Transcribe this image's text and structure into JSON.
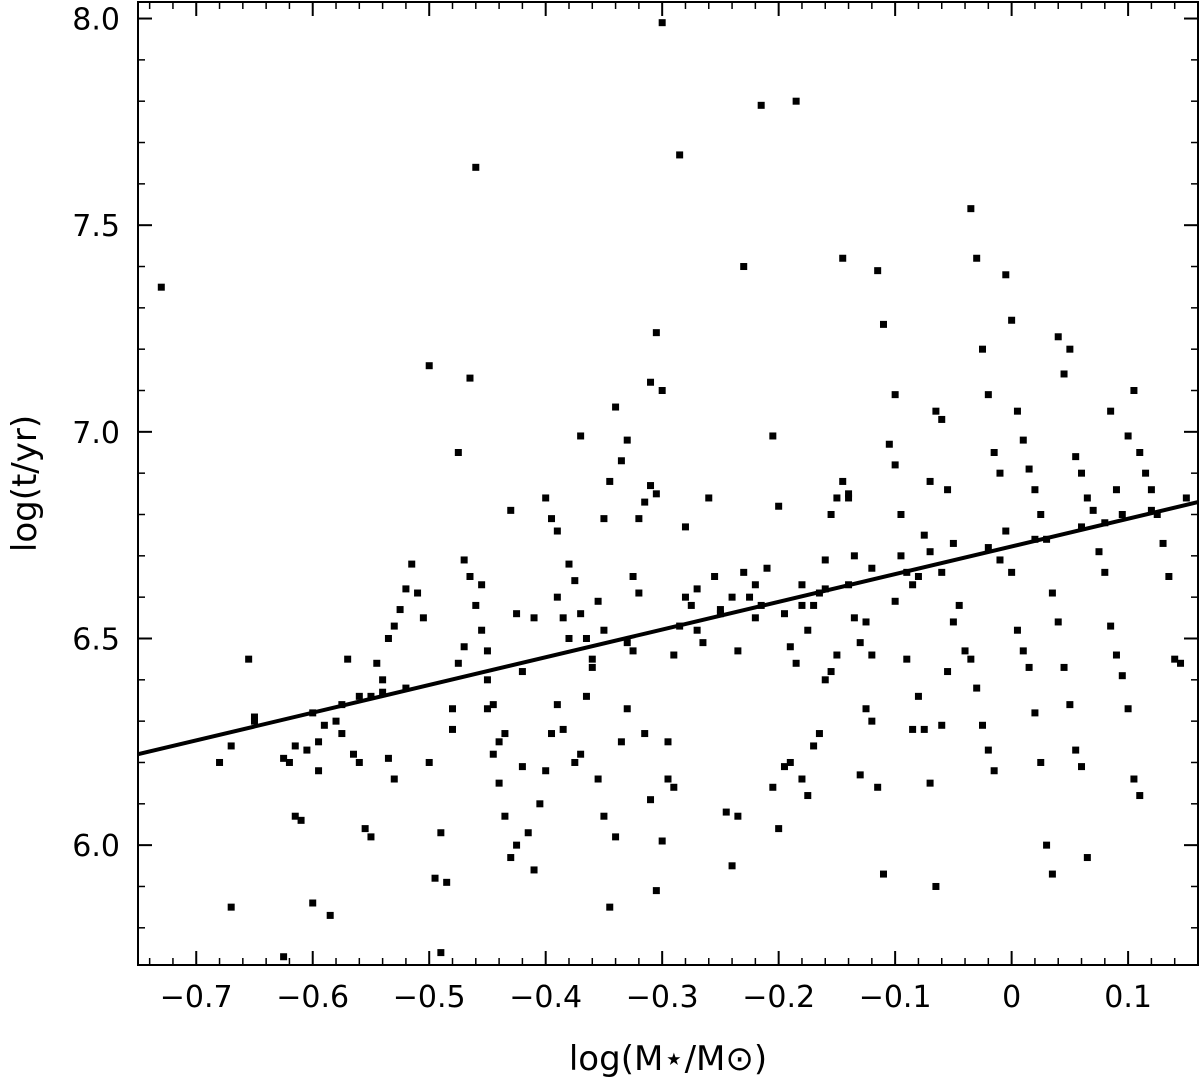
{
  "chart_data": {
    "type": "scatter",
    "title": "",
    "xlabel": "log(M⋆/M⊙)",
    "ylabel": "log(t/yr)",
    "xlim": [
      -0.75,
      0.16
    ],
    "ylim": [
      5.71,
      8.04
    ],
    "x_ticks": [
      -0.7,
      -0.6,
      -0.5,
      -0.4,
      -0.3,
      -0.2,
      -0.1,
      0,
      0.1
    ],
    "x_tick_labels": [
      "−0.7",
      "−0.6",
      "−0.5",
      "−0.4",
      "−0.3",
      "−0.2",
      "−0.1",
      "0",
      "0.1"
    ],
    "y_ticks": [
      6.0,
      6.5,
      7.0,
      7.5,
      8.0
    ],
    "y_tick_labels": [
      "6.0",
      "6.5",
      "7.0",
      "7.5",
      "8.0"
    ],
    "grid": false,
    "legend": "none",
    "points": [
      [
        -0.73,
        7.35
      ],
      [
        -0.68,
        6.2
      ],
      [
        -0.67,
        6.24
      ],
      [
        -0.67,
        5.85
      ],
      [
        -0.655,
        6.45
      ],
      [
        -0.65,
        6.31
      ],
      [
        -0.625,
        6.21
      ],
      [
        -0.62,
        6.2
      ],
      [
        -0.615,
        6.07
      ],
      [
        -0.61,
        6.06
      ],
      [
        -0.605,
        6.23
      ],
      [
        -0.6,
        5.86
      ],
      [
        -0.595,
        6.18
      ],
      [
        -0.59,
        6.29
      ],
      [
        -0.585,
        5.83
      ],
      [
        -0.58,
        6.3
      ],
      [
        -0.575,
        6.34
      ],
      [
        -0.57,
        6.45
      ],
      [
        -0.565,
        6.22
      ],
      [
        -0.56,
        6.2
      ],
      [
        -0.555,
        6.04
      ],
      [
        -0.55,
        6.02
      ],
      [
        -0.545,
        6.44
      ],
      [
        -0.54,
        6.4
      ],
      [
        -0.535,
        6.21
      ],
      [
        -0.53,
        6.16
      ],
      [
        -0.625,
        5.73
      ],
      [
        -0.615,
        6.24
      ],
      [
        -0.595,
        6.25
      ],
      [
        -0.575,
        6.27
      ],
      [
        -0.55,
        6.36
      ],
      [
        -0.54,
        6.37
      ],
      [
        -0.535,
        6.5
      ],
      [
        -0.53,
        6.53
      ],
      [
        -0.525,
        6.57
      ],
      [
        -0.52,
        6.62
      ],
      [
        -0.515,
        6.68
      ],
      [
        -0.51,
        6.61
      ],
      [
        -0.505,
        6.55
      ],
      [
        -0.5,
        6.2
      ],
      [
        -0.495,
        5.92
      ],
      [
        -0.49,
        6.03
      ],
      [
        -0.485,
        5.91
      ],
      [
        -0.48,
        6.28
      ],
      [
        -0.475,
        6.44
      ],
      [
        -0.47,
        6.69
      ],
      [
        -0.465,
        6.65
      ],
      [
        -0.46,
        6.58
      ],
      [
        -0.455,
        6.63
      ],
      [
        -0.45,
        6.33
      ],
      [
        -0.445,
        6.22
      ],
      [
        -0.44,
        6.15
      ],
      [
        -0.435,
        6.07
      ],
      [
        -0.43,
        5.97
      ],
      [
        -0.425,
        6.0
      ],
      [
        -0.5,
        7.16
      ],
      [
        -0.49,
        5.74
      ],
      [
        -0.475,
        6.95
      ],
      [
        -0.465,
        7.13
      ],
      [
        -0.46,
        7.64
      ],
      [
        -0.455,
        6.52
      ],
      [
        -0.45,
        6.47
      ],
      [
        -0.445,
        6.34
      ],
      [
        -0.44,
        6.25
      ],
      [
        -0.435,
        6.27
      ],
      [
        -0.43,
        6.81
      ],
      [
        -0.425,
        6.56
      ],
      [
        -0.42,
        6.19
      ],
      [
        -0.415,
        6.03
      ],
      [
        -0.41,
        5.94
      ],
      [
        -0.405,
        6.1
      ],
      [
        -0.4,
        6.18
      ],
      [
        -0.395,
        6.27
      ],
      [
        -0.39,
        6.34
      ],
      [
        -0.385,
        6.28
      ],
      [
        -0.38,
        6.68
      ],
      [
        -0.375,
        6.64
      ],
      [
        -0.37,
        6.99
      ],
      [
        -0.365,
        6.5
      ],
      [
        -0.36,
        6.45
      ],
      [
        -0.355,
        6.16
      ],
      [
        -0.35,
        6.07
      ],
      [
        -0.345,
        5.85
      ],
      [
        -0.34,
        6.02
      ],
      [
        -0.335,
        6.25
      ],
      [
        -0.33,
        6.33
      ],
      [
        -0.325,
        6.47
      ],
      [
        -0.32,
        6.79
      ],
      [
        -0.315,
        6.83
      ],
      [
        -0.31,
        6.87
      ],
      [
        -0.305,
        6.85
      ],
      [
        -0.4,
        6.84
      ],
      [
        -0.395,
        6.79
      ],
      [
        -0.39,
        6.76
      ],
      [
        -0.385,
        6.55
      ],
      [
        -0.38,
        6.5
      ],
      [
        -0.375,
        6.2
      ],
      [
        -0.37,
        6.22
      ],
      [
        -0.365,
        6.36
      ],
      [
        -0.36,
        6.43
      ],
      [
        -0.355,
        6.59
      ],
      [
        -0.35,
        6.79
      ],
      [
        -0.345,
        6.88
      ],
      [
        -0.34,
        7.06
      ],
      [
        -0.335,
        6.93
      ],
      [
        -0.33,
        6.98
      ],
      [
        -0.325,
        6.65
      ],
      [
        -0.32,
        6.61
      ],
      [
        -0.315,
        6.27
      ],
      [
        -0.31,
        6.11
      ],
      [
        -0.305,
        5.89
      ],
      [
        -0.3,
        6.01
      ],
      [
        -0.295,
        6.25
      ],
      [
        -0.29,
        6.46
      ],
      [
        -0.285,
        6.53
      ],
      [
        -0.28,
        6.6
      ],
      [
        -0.31,
        7.12
      ],
      [
        -0.305,
        7.24
      ],
      [
        -0.3,
        7.1
      ],
      [
        -0.3,
        7.99
      ],
      [
        -0.295,
        6.16
      ],
      [
        -0.29,
        6.14
      ],
      [
        -0.285,
        7.67
      ],
      [
        -0.28,
        6.77
      ],
      [
        -0.275,
        6.58
      ],
      [
        -0.27,
        6.52
      ],
      [
        -0.265,
        6.49
      ],
      [
        -0.26,
        6.84
      ],
      [
        -0.255,
        6.65
      ],
      [
        -0.25,
        6.57
      ],
      [
        -0.245,
        6.08
      ],
      [
        -0.24,
        5.95
      ],
      [
        -0.235,
        6.47
      ],
      [
        -0.23,
        6.66
      ],
      [
        -0.225,
        6.6
      ],
      [
        -0.22,
        6.63
      ],
      [
        -0.215,
        6.58
      ],
      [
        -0.21,
        6.67
      ],
      [
        -0.205,
        6.14
      ],
      [
        -0.2,
        6.04
      ],
      [
        -0.195,
        6.19
      ],
      [
        -0.19,
        6.2
      ],
      [
        -0.235,
        6.07
      ],
      [
        -0.23,
        7.4
      ],
      [
        -0.215,
        7.79
      ],
      [
        -0.205,
        6.99
      ],
      [
        -0.2,
        6.82
      ],
      [
        -0.195,
        6.56
      ],
      [
        -0.19,
        6.48
      ],
      [
        -0.185,
        6.44
      ],
      [
        -0.18,
        6.16
      ],
      [
        -0.175,
        6.12
      ],
      [
        -0.17,
        6.58
      ],
      [
        -0.165,
        6.61
      ],
      [
        -0.16,
        6.62
      ],
      [
        -0.155,
        6.8
      ],
      [
        -0.15,
        6.84
      ],
      [
        -0.185,
        7.8
      ],
      [
        -0.18,
        6.63
      ],
      [
        -0.175,
        6.52
      ],
      [
        -0.17,
        6.24
      ],
      [
        -0.165,
        6.27
      ],
      [
        -0.16,
        6.4
      ],
      [
        -0.155,
        6.42
      ],
      [
        -0.15,
        6.46
      ],
      [
        -0.145,
        6.88
      ],
      [
        -0.14,
        6.85
      ],
      [
        -0.135,
        6.7
      ],
      [
        -0.13,
        6.49
      ],
      [
        -0.125,
        6.54
      ],
      [
        -0.12,
        6.3
      ],
      [
        -0.115,
        6.14
      ],
      [
        -0.11,
        5.93
      ],
      [
        -0.145,
        7.42
      ],
      [
        -0.14,
        6.84
      ],
      [
        -0.135,
        6.55
      ],
      [
        -0.13,
        6.17
      ],
      [
        -0.125,
        6.33
      ],
      [
        -0.12,
        6.46
      ],
      [
        -0.115,
        7.39
      ],
      [
        -0.11,
        7.26
      ],
      [
        -0.105,
        6.97
      ],
      [
        -0.1,
        6.92
      ],
      [
        -0.095,
        6.7
      ],
      [
        -0.09,
        6.66
      ],
      [
        -0.085,
        6.63
      ],
      [
        -0.08,
        6.36
      ],
      [
        -0.075,
        6.28
      ],
      [
        -0.07,
        6.15
      ],
      [
        -0.065,
        5.9
      ],
      [
        -0.06,
        6.29
      ],
      [
        -0.055,
        6.42
      ],
      [
        -0.05,
        6.54
      ],
      [
        -0.1,
        7.09
      ],
      [
        -0.095,
        6.8
      ],
      [
        -0.09,
        6.45
      ],
      [
        -0.085,
        6.28
      ],
      [
        -0.08,
        6.65
      ],
      [
        -0.075,
        6.75
      ],
      [
        -0.07,
        6.88
      ],
      [
        -0.065,
        7.05
      ],
      [
        -0.06,
        7.03
      ],
      [
        -0.055,
        6.86
      ],
      [
        -0.05,
        6.73
      ],
      [
        -0.045,
        6.58
      ],
      [
        -0.04,
        6.47
      ],
      [
        -0.035,
        6.45
      ],
      [
        -0.03,
        6.38
      ],
      [
        -0.025,
        6.29
      ],
      [
        -0.02,
        6.23
      ],
      [
        -0.015,
        6.18
      ],
      [
        -0.035,
        7.54
      ],
      [
        -0.03,
        7.42
      ],
      [
        -0.025,
        7.2
      ],
      [
        -0.02,
        7.09
      ],
      [
        -0.015,
        6.95
      ],
      [
        -0.01,
        6.9
      ],
      [
        -0.005,
        6.76
      ],
      [
        0.0,
        6.66
      ],
      [
        0.005,
        6.52
      ],
      [
        0.01,
        6.47
      ],
      [
        0.015,
        6.43
      ],
      [
        0.02,
        6.32
      ],
      [
        0.025,
        6.2
      ],
      [
        0.03,
        6.0
      ],
      [
        0.035,
        5.93
      ],
      [
        -0.005,
        7.38
      ],
      [
        0.0,
        7.27
      ],
      [
        0.005,
        7.05
      ],
      [
        0.01,
        6.98
      ],
      [
        0.015,
        6.91
      ],
      [
        0.02,
        6.86
      ],
      [
        0.025,
        6.8
      ],
      [
        0.03,
        6.74
      ],
      [
        0.035,
        6.61
      ],
      [
        0.04,
        6.54
      ],
      [
        0.045,
        6.43
      ],
      [
        0.05,
        6.34
      ],
      [
        0.055,
        6.23
      ],
      [
        0.06,
        6.19
      ],
      [
        0.065,
        5.97
      ],
      [
        0.04,
        7.23
      ],
      [
        0.045,
        7.14
      ],
      [
        0.05,
        7.2
      ],
      [
        0.055,
        6.94
      ],
      [
        0.06,
        6.9
      ],
      [
        0.065,
        6.84
      ],
      [
        0.07,
        6.81
      ],
      [
        0.075,
        6.71
      ],
      [
        0.08,
        6.66
      ],
      [
        0.085,
        6.53
      ],
      [
        0.09,
        6.46
      ],
      [
        0.095,
        6.41
      ],
      [
        0.1,
        6.33
      ],
      [
        0.105,
        6.16
      ],
      [
        0.11,
        6.12
      ],
      [
        0.085,
        7.05
      ],
      [
        0.09,
        6.86
      ],
      [
        0.095,
        6.8
      ],
      [
        0.1,
        6.99
      ],
      [
        0.105,
        7.1
      ],
      [
        0.11,
        6.95
      ],
      [
        0.115,
        6.9
      ],
      [
        0.12,
        6.86
      ],
      [
        0.125,
        6.8
      ],
      [
        0.13,
        6.73
      ],
      [
        0.135,
        6.65
      ],
      [
        0.14,
        6.45
      ],
      [
        0.145,
        6.44
      ],
      [
        0.15,
        6.84
      ],
      [
        -0.65,
        6.3
      ],
      [
        -0.6,
        6.32
      ],
      [
        -0.56,
        6.36
      ],
      [
        -0.52,
        6.38
      ],
      [
        -0.48,
        6.33
      ],
      [
        -0.47,
        6.48
      ],
      [
        -0.45,
        6.4
      ],
      [
        -0.42,
        6.42
      ],
      [
        -0.41,
        6.55
      ],
      [
        -0.39,
        6.6
      ],
      [
        -0.37,
        6.56
      ],
      [
        -0.35,
        6.52
      ],
      [
        -0.33,
        6.49
      ],
      [
        -0.27,
        6.62
      ],
      [
        -0.25,
        6.56
      ],
      [
        -0.24,
        6.6
      ],
      [
        -0.22,
        6.55
      ],
      [
        -0.18,
        6.58
      ],
      [
        -0.16,
        6.69
      ],
      [
        -0.14,
        6.63
      ],
      [
        -0.12,
        6.67
      ],
      [
        -0.1,
        6.59
      ],
      [
        -0.07,
        6.71
      ],
      [
        -0.06,
        6.66
      ],
      [
        -0.02,
        6.72
      ],
      [
        -0.01,
        6.69
      ],
      [
        0.02,
        6.74
      ],
      [
        0.06,
        6.77
      ],
      [
        0.08,
        6.78
      ],
      [
        0.12,
        6.81
      ]
    ],
    "fit_line": {
      "x": [
        -0.75,
        0.16
      ],
      "y": [
        6.22,
        6.83
      ]
    }
  }
}
